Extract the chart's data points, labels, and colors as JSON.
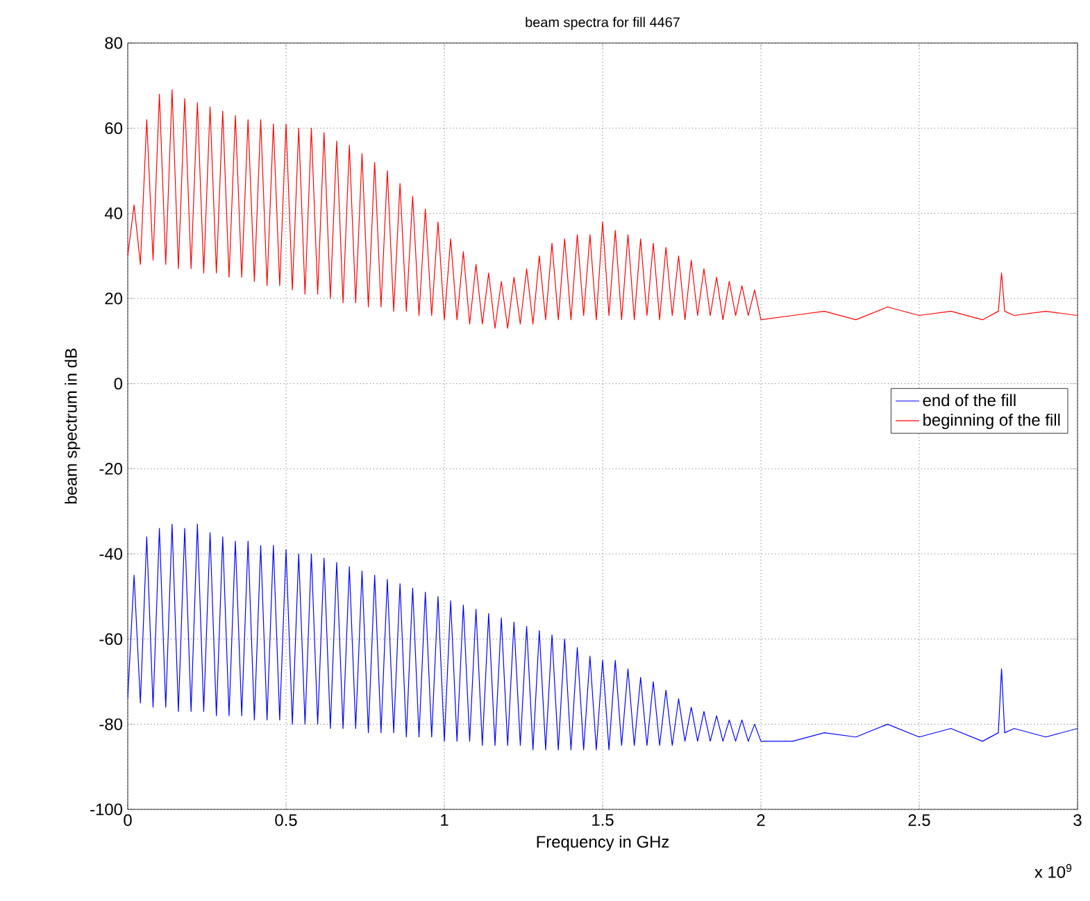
{
  "chart_data": {
    "type": "line",
    "title": "beam spectra for fill 4467",
    "xlabel": "Frequency in GHz",
    "ylabel": "beam spectrum in dB",
    "annotations": [
      "x 10$^{9}$"
    ],
    "x": [
      0,
      0.02,
      0.04,
      0.06,
      0.08,
      0.1,
      0.12,
      0.14,
      0.16,
      0.18,
      0.2,
      0.22,
      0.24,
      0.26,
      0.28,
      0.3,
      0.32,
      0.34,
      0.36,
      0.38,
      0.4,
      0.42,
      0.44,
      0.46,
      0.48,
      0.5,
      0.52,
      0.54,
      0.56,
      0.58,
      0.6,
      0.62,
      0.64,
      0.66,
      0.68,
      0.7,
      0.72,
      0.74,
      0.76,
      0.78,
      0.8,
      0.82,
      0.84,
      0.86,
      0.88,
      0.9,
      0.92,
      0.94,
      0.96,
      0.98,
      1.0,
      1.02,
      1.04,
      1.06,
      1.08,
      1.1,
      1.12,
      1.14,
      1.16,
      1.18,
      1.2,
      1.22,
      1.24,
      1.26,
      1.28,
      1.3,
      1.32,
      1.34,
      1.36,
      1.38,
      1.4,
      1.42,
      1.44,
      1.46,
      1.48,
      1.5,
      1.52,
      1.54,
      1.56,
      1.58,
      1.6,
      1.62,
      1.64,
      1.66,
      1.68,
      1.7,
      1.72,
      1.74,
      1.76,
      1.78,
      1.8,
      1.82,
      1.84,
      1.86,
      1.88,
      1.9,
      1.92,
      1.94,
      1.96,
      1.98,
      2.0,
      2.1,
      2.2,
      2.3,
      2.4,
      2.5,
      2.6,
      2.7,
      2.75,
      2.76,
      2.77,
      2.8,
      2.9,
      3.0
    ],
    "series": [
      {
        "name": "end of the fill",
        "color": "#0000ff",
        "values": [
          -74,
          -45,
          -75,
          -36,
          -76,
          -34,
          -76,
          -33,
          -77,
          -34,
          -77,
          -33,
          -77,
          -35,
          -78,
          -36,
          -78,
          -37,
          -78,
          -37,
          -79,
          -38,
          -79,
          -38,
          -79,
          -39,
          -80,
          -40,
          -80,
          -40,
          -80,
          -41,
          -81,
          -42,
          -81,
          -43,
          -81,
          -44,
          -82,
          -45,
          -82,
          -46,
          -82,
          -47,
          -83,
          -48,
          -83,
          -49,
          -83,
          -50,
          -84,
          -51,
          -84,
          -52,
          -84,
          -53,
          -85,
          -54,
          -85,
          -55,
          -85,
          -56,
          -85,
          -57,
          -86,
          -58,
          -86,
          -59,
          -86,
          -60,
          -86,
          -62,
          -86,
          -64,
          -86,
          -65,
          -86,
          -65,
          -85,
          -67,
          -85,
          -69,
          -85,
          -70,
          -85,
          -72,
          -85,
          -74,
          -84,
          -76,
          -84,
          -77,
          -84,
          -78,
          -84,
          -79,
          -84,
          -79,
          -84,
          -80,
          -84,
          -84,
          -82,
          -83,
          -80,
          -83,
          -81,
          -84,
          -82,
          -67,
          -82,
          -81,
          -83,
          -81
        ]
      },
      {
        "name": "beginning of the fill",
        "color": "#ff0000",
        "values": [
          30,
          42,
          28,
          62,
          29,
          68,
          28,
          69,
          27,
          67,
          27,
          66,
          26,
          65,
          26,
          64,
          25,
          63,
          25,
          62,
          24,
          62,
          23,
          61,
          23,
          61,
          22,
          60,
          21,
          60,
          21,
          59,
          20,
          57,
          19,
          56,
          19,
          54,
          18,
          52,
          18,
          50,
          17,
          47,
          17,
          44,
          16,
          41,
          16,
          38,
          15,
          34,
          15,
          31,
          14,
          28,
          14,
          26,
          13,
          24,
          13,
          25,
          14,
          27,
          14,
          30,
          15,
          33,
          15,
          34,
          15,
          35,
          16,
          35,
          15,
          38,
          16,
          36,
          15,
          35,
          15,
          34,
          16,
          33,
          15,
          32,
          16,
          30,
          15,
          29,
          16,
          27,
          16,
          25,
          15,
          24,
          16,
          23,
          16,
          22,
          15,
          16,
          17,
          15,
          18,
          16,
          17,
          15,
          17,
          26,
          17,
          16,
          17,
          16
        ]
      }
    ],
    "xlim": [
      0,
      3
    ],
    "ylim": [
      -100,
      80
    ],
    "xticks": [
      0,
      0.5,
      1,
      1.5,
      2,
      2.5,
      3
    ],
    "yticks": [
      -100,
      -80,
      -60,
      -40,
      -20,
      0,
      20,
      40,
      60,
      80
    ],
    "grid": true,
    "legend": "right",
    "line_style": "solid",
    "marker": "none"
  }
}
